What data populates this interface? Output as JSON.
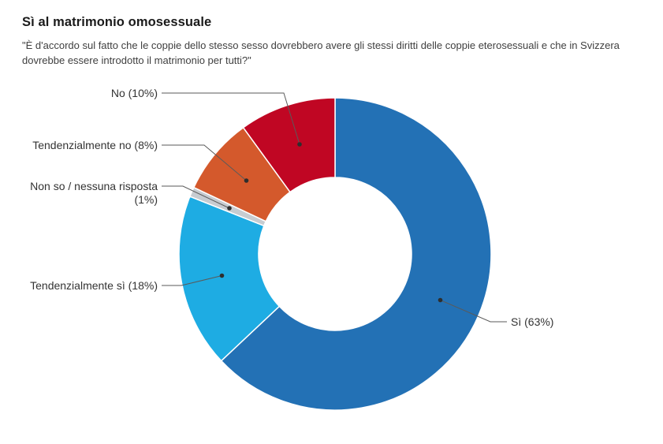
{
  "page": {
    "title": "Sì al matrimonio omosessuale",
    "subtitle": "\"È d'accordo sul fatto che le coppie dello stesso sesso dovrebbero avere gli stessi diritti delle coppie eterosessuali e che in Svizzera dovrebbe essere introdotto il matrimonio per tutti?\""
  },
  "chart_data": {
    "type": "pie",
    "subtype": "donut",
    "title": "Sì al matrimonio omosessuale",
    "question": "\"È d'accordo sul fatto che le coppie dello stesso sesso dovrebbero avere gli stessi diritti delle coppie eterosessuali e che in Svizzera dovrebbe essere introdotto il matrimonio per tutti?\"",
    "unit": "%",
    "start_angle_deg": 0,
    "direction": "clockwise",
    "inner_radius_ratio": 0.49,
    "legend_position": "callouts",
    "segments": [
      {
        "label": "Sì",
        "value": 63,
        "color": "#2371b5",
        "callout": "Sì (63%)"
      },
      {
        "label": "Tendenzialmente sì",
        "value": 18,
        "color": "#1eace3",
        "callout": "Tendenzialmente sì (18%)"
      },
      {
        "label": "Non so / nessuna risposta",
        "value": 1,
        "color": "#c7ccd1",
        "callout": "Non so / nessuna risposta (1%)"
      },
      {
        "label": "Tendenzialmente no",
        "value": 8,
        "color": "#d4592c",
        "callout": "Tendenzialmente no (8%)"
      },
      {
        "label": "No",
        "value": 10,
        "color": "#c00623",
        "callout": "No (10%)"
      }
    ],
    "connector_color": "#5a5a5a",
    "dot_color": "#2e2e2e"
  }
}
